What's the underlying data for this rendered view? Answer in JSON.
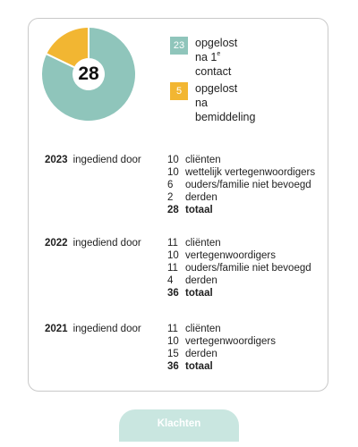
{
  "colors": {
    "teal": "#8fc5bb",
    "yellow": "#f2b632",
    "button_bg": "#c9e6e0"
  },
  "summary": {
    "total": "28",
    "legend": [
      {
        "value": "23",
        "line1": "opgelost",
        "line2_main": "na 1",
        "line2_sup": "e",
        "line2_rest": " contact",
        "color": "teal"
      },
      {
        "value": "5",
        "line1": "opgelost",
        "line2_main": "na bemiddeling",
        "line2_sup": "",
        "line2_rest": "",
        "color": "yellow"
      }
    ]
  },
  "chart_data": {
    "type": "pie",
    "donut": true,
    "center_label": "28",
    "slices": [
      {
        "label": "opgelost na 1e contact",
        "value": 23,
        "color": "#8fc5bb"
      },
      {
        "label": "opgelost na bemiddeling",
        "value": 5,
        "color": "#f2b632"
      }
    ]
  },
  "years": [
    {
      "year": "2023",
      "subtitle": "ingediend door",
      "rows": [
        {
          "num": "10",
          "label": "cliënten"
        },
        {
          "num": "10",
          "label": "wettelijk vertegenwoordigers"
        },
        {
          "num": "6",
          "label": "ouders/familie niet bevoegd"
        },
        {
          "num": "2",
          "label": "derden"
        }
      ],
      "total": {
        "num": "28",
        "label": "totaal"
      }
    },
    {
      "year": "2022",
      "subtitle": "ingediend door",
      "rows": [
        {
          "num": "11",
          "label": "cliënten"
        },
        {
          "num": "10",
          "label": "vertegenwoordigers"
        },
        {
          "num": "11",
          "label": "ouders/familie niet bevoegd"
        },
        {
          "num": "4",
          "label": "derden"
        }
      ],
      "total": {
        "num": "36",
        "label": "totaal"
      }
    },
    {
      "year": "2021",
      "subtitle": "ingediend door",
      "rows": [
        {
          "num": "11",
          "label": "cliënten"
        },
        {
          "num": "10",
          "label": "vertegenwoordigers"
        },
        {
          "num": "15",
          "label": "derden"
        }
      ],
      "total": {
        "num": "36",
        "label": "totaal"
      }
    }
  ],
  "button": {
    "label": "Klachten"
  }
}
